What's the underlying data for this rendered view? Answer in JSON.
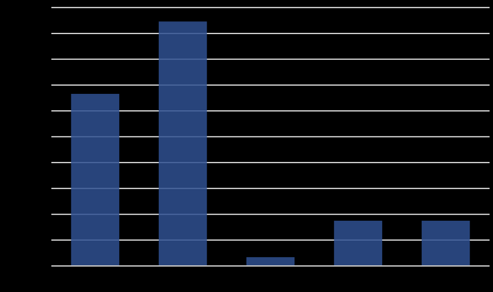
{
  "chart_data": {
    "type": "bar",
    "categories": [
      null,
      null,
      null,
      null,
      null
    ],
    "values": [
      33.3,
      47.3,
      1.7,
      8.75,
      8.75
    ],
    "color": "#2f5090",
    "ylim": [
      0,
      50
    ],
    "yticks": [
      0,
      5,
      10,
      15,
      20,
      25,
      30,
      35,
      40,
      45,
      50
    ],
    "grid": true
  }
}
